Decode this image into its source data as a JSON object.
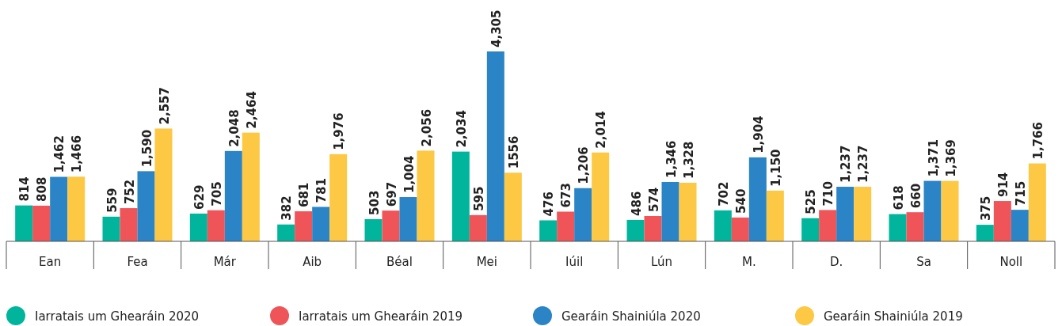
{
  "chart_data": {
    "type": "bar",
    "categories": [
      "Ean",
      "Fea",
      "Már",
      "Aib",
      "Béal",
      "Mei",
      "Iúil",
      "Lún",
      "M.",
      "D.",
      "Sa",
      "Noll"
    ],
    "series": [
      {
        "name": "Iarratais um Ghearáin 2020",
        "color": "#00b59b",
        "values": [
          814,
          559,
          629,
          382,
          503,
          2034,
          476,
          486,
          702,
          525,
          618,
          375
        ],
        "value_labels": [
          "814",
          "559",
          "629",
          "382",
          "503",
          "2,034",
          "476",
          "486",
          "702",
          "525",
          "618",
          "375"
        ]
      },
      {
        "name": "Iarratais um Ghearáin 2019",
        "color": "#ef5458",
        "values": [
          808,
          752,
          705,
          681,
          697,
          595,
          673,
          574,
          540,
          710,
          660,
          914
        ],
        "value_labels": [
          "808",
          "752",
          "705",
          "681",
          "697",
          "595",
          "673",
          "574",
          "540",
          "710",
          "660",
          "914"
        ]
      },
      {
        "name": "Gearáin Shainiúla 2020",
        "color": "#2a84c6",
        "values": [
          1462,
          1590,
          2048,
          781,
          1004,
          4305,
          1206,
          1346,
          1904,
          1237,
          1371,
          715
        ],
        "value_labels": [
          "1,462",
          "1,590",
          "2,048",
          "781",
          "1,004",
          "4,305",
          "1,206",
          "1,346",
          "1,904",
          "1,237",
          "1,371",
          "715"
        ]
      },
      {
        "name": "Gearáin Shainiúla 2019",
        "color": "#fdc843",
        "values": [
          1466,
          2557,
          2464,
          1976,
          2056,
          1556,
          2014,
          1328,
          1150,
          1237,
          1369,
          1766
        ],
        "value_labels": [
          "1,466",
          "2,557",
          "2,464",
          "1,976",
          "2,056",
          "1556",
          "2,014",
          "1,328",
          "1,150",
          "1,237",
          "1,369",
          "1,766"
        ]
      }
    ],
    "legend": "bottom"
  }
}
